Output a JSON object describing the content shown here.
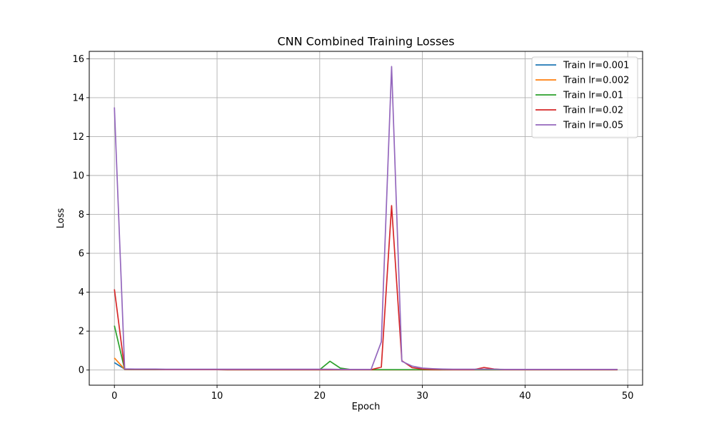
{
  "chart_data": {
    "type": "line",
    "title": "CNN Combined Training Losses",
    "xlabel": "Epoch",
    "ylabel": "Loss",
    "xlim": [
      -2.45,
      51.45
    ],
    "ylim": [
      -0.78,
      16.38
    ],
    "xticks": [
      0,
      10,
      20,
      30,
      40,
      50
    ],
    "yticks": [
      0,
      2,
      4,
      6,
      8,
      10,
      12,
      14,
      16
    ],
    "grid": true,
    "legend_position": "upper right",
    "series": [
      {
        "name": "Train lr=0.001",
        "color": "#1f77b4",
        "x": [
          0,
          1,
          2,
          3,
          4,
          5,
          6,
          7,
          8,
          9,
          10,
          11,
          12,
          13,
          14,
          15,
          16,
          17,
          18,
          19,
          20,
          21,
          22,
          23,
          24,
          25,
          26,
          27,
          28,
          29,
          30,
          31,
          32,
          33,
          34,
          35,
          36,
          37,
          38,
          39,
          40,
          41,
          42,
          43,
          44,
          45,
          46,
          47,
          48,
          49
        ],
        "y": [
          0.38,
          0.05,
          0.03,
          0.03,
          0.02,
          0.02,
          0.02,
          0.02,
          0.02,
          0.02,
          0.02,
          0.01,
          0.01,
          0.01,
          0.01,
          0.01,
          0.01,
          0.01,
          0.01,
          0.01,
          0.01,
          0.01,
          0.01,
          0.01,
          0.01,
          0.01,
          0.01,
          0.01,
          0.01,
          0.01,
          0.01,
          0.01,
          0.01,
          0.01,
          0.01,
          0.01,
          0.01,
          0.01,
          0.01,
          0.01,
          0.01,
          0.01,
          0.01,
          0.01,
          0.01,
          0.01,
          0.01,
          0.01,
          0.01,
          0.01
        ]
      },
      {
        "name": "Train lr=0.002",
        "color": "#ff7f0e",
        "x": [
          0,
          1,
          2,
          3,
          4,
          5,
          6,
          7,
          8,
          9,
          10,
          11,
          12,
          13,
          14,
          15,
          16,
          17,
          18,
          19,
          20,
          21,
          22,
          23,
          24,
          25,
          26,
          27,
          28,
          29,
          30,
          31,
          32,
          33,
          34,
          35,
          36,
          37,
          38,
          39,
          40,
          41,
          42,
          43,
          44,
          45,
          46,
          47,
          48,
          49
        ],
        "y": [
          0.62,
          0.04,
          0.03,
          0.03,
          0.02,
          0.02,
          0.02,
          0.02,
          0.02,
          0.02,
          0.02,
          0.01,
          0.01,
          0.01,
          0.01,
          0.01,
          0.01,
          0.01,
          0.01,
          0.01,
          0.01,
          0.01,
          0.01,
          0.01,
          0.01,
          0.01,
          0.01,
          0.01,
          0.01,
          0.01,
          0.01,
          0.01,
          0.01,
          0.01,
          0.01,
          0.01,
          0.01,
          0.01,
          0.01,
          0.01,
          0.01,
          0.01,
          0.01,
          0.01,
          0.01,
          0.01,
          0.01,
          0.01,
          0.01,
          0.01
        ]
      },
      {
        "name": "Train lr=0.01",
        "color": "#2ca02c",
        "x": [
          0,
          1,
          2,
          3,
          4,
          5,
          6,
          7,
          8,
          9,
          10,
          11,
          12,
          13,
          14,
          15,
          16,
          17,
          18,
          19,
          20,
          21,
          22,
          23,
          24,
          25,
          26,
          27,
          28,
          29,
          30,
          31,
          32,
          33,
          34,
          35,
          36,
          37,
          38,
          39,
          40,
          41,
          42,
          43,
          44,
          45,
          46,
          47,
          48,
          49
        ],
        "y": [
          2.28,
          0.03,
          0.02,
          0.02,
          0.02,
          0.02,
          0.02,
          0.02,
          0.02,
          0.02,
          0.02,
          0.02,
          0.02,
          0.02,
          0.02,
          0.02,
          0.02,
          0.02,
          0.02,
          0.02,
          0.02,
          0.45,
          0.1,
          0.03,
          0.02,
          0.02,
          0.02,
          0.02,
          0.02,
          0.02,
          0.02,
          0.02,
          0.02,
          0.02,
          0.02,
          0.02,
          0.02,
          0.02,
          0.02,
          0.02,
          0.02,
          0.02,
          0.02,
          0.02,
          0.02,
          0.02,
          0.02,
          0.02,
          0.02,
          0.02
        ]
      },
      {
        "name": "Train lr=0.02",
        "color": "#d62728",
        "x": [
          0,
          1,
          2,
          3,
          4,
          5,
          6,
          7,
          8,
          9,
          10,
          11,
          12,
          13,
          14,
          15,
          16,
          17,
          18,
          19,
          20,
          21,
          22,
          23,
          24,
          25,
          26,
          27,
          28,
          29,
          30,
          31,
          32,
          33,
          34,
          35,
          36,
          37,
          38,
          39,
          40,
          41,
          42,
          43,
          44,
          45,
          46,
          47,
          48,
          49
        ],
        "y": [
          4.15,
          0.04,
          0.03,
          0.03,
          0.03,
          0.02,
          0.02,
          0.02,
          0.02,
          0.02,
          0.02,
          0.02,
          0.02,
          0.02,
          0.02,
          0.02,
          0.02,
          0.02,
          0.02,
          0.02,
          0.02,
          0.02,
          0.02,
          0.02,
          0.02,
          0.02,
          0.15,
          8.45,
          0.48,
          0.12,
          0.05,
          0.03,
          0.03,
          0.02,
          0.02,
          0.02,
          0.13,
          0.05,
          0.02,
          0.02,
          0.02,
          0.02,
          0.02,
          0.02,
          0.02,
          0.02,
          0.02,
          0.02,
          0.02,
          0.02
        ]
      },
      {
        "name": "Train lr=0.05",
        "color": "#9467bd",
        "x": [
          0,
          1,
          2,
          3,
          4,
          5,
          6,
          7,
          8,
          9,
          10,
          11,
          12,
          13,
          14,
          15,
          16,
          17,
          18,
          19,
          20,
          21,
          22,
          23,
          24,
          25,
          26,
          27,
          28,
          29,
          30,
          31,
          32,
          33,
          34,
          35,
          36,
          37,
          38,
          39,
          40,
          41,
          42,
          43,
          44,
          45,
          46,
          47,
          48,
          49
        ],
        "y": [
          13.5,
          0.06,
          0.05,
          0.05,
          0.05,
          0.04,
          0.04,
          0.04,
          0.04,
          0.04,
          0.04,
          0.04,
          0.04,
          0.04,
          0.04,
          0.04,
          0.04,
          0.04,
          0.04,
          0.04,
          0.04,
          0.04,
          0.03,
          0.03,
          0.03,
          0.03,
          1.45,
          15.6,
          0.45,
          0.2,
          0.1,
          0.07,
          0.05,
          0.04,
          0.04,
          0.04,
          0.04,
          0.04,
          0.03,
          0.03,
          0.03,
          0.03,
          0.03,
          0.03,
          0.03,
          0.03,
          0.03,
          0.03,
          0.03,
          0.03
        ]
      }
    ]
  }
}
